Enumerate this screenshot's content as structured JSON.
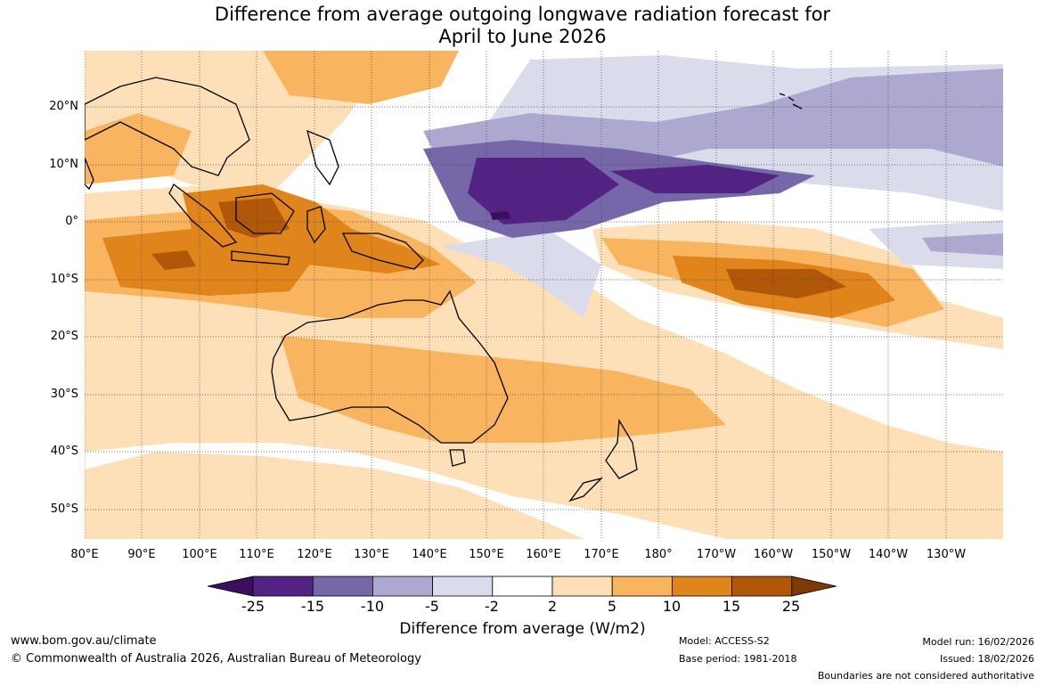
{
  "title_line1": "Difference from average outgoing longwave radiation forecast for",
  "title_line2": "April to June 2026",
  "lat_labels": [
    "20°N",
    "10°N",
    "0°",
    "10°S",
    "20°S",
    "30°S",
    "40°S",
    "50°S"
  ],
  "lon_labels": [
    "80°E",
    "90°E",
    "100°E",
    "110°E",
    "120°E",
    "130°E",
    "140°E",
    "150°E",
    "160°E",
    "170°E",
    "180°",
    "170°W",
    "160°W",
    "150°W",
    "140°W",
    "130°W"
  ],
  "colorbar": {
    "ticks": [
      "-25",
      "-15",
      "-10",
      "-5",
      "-2",
      "2",
      "5",
      "10",
      "15",
      "25"
    ],
    "colors": [
      "#3b0f5e",
      "#522383",
      "#7667a8",
      "#ada8d0",
      "#dadbeb",
      "#ffffff",
      "#fde0b8",
      "#f9b460",
      "#e0841c",
      "#b0570a",
      "#7e3a06"
    ],
    "label": "Difference from average (W/m2)"
  },
  "footer": {
    "url": "www.bom.gov.au/climate",
    "copyright": "© Commonwealth of Australia 2026, Australian Bureau of Meteorology",
    "model": "Model: ACCESS-S2",
    "base_period": "Base period: 1981-2018",
    "model_run": "Model run: 16/02/2026",
    "issued": "Issued: 18/02/2026",
    "disclaimer": "Boundaries are not considered authoritative"
  }
}
